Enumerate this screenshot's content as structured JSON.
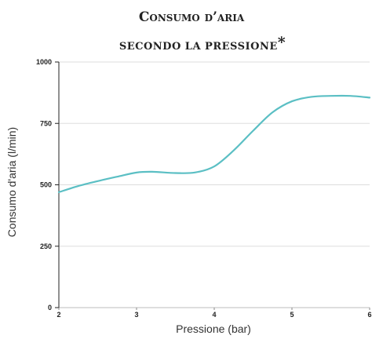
{
  "chart_data": {
    "type": "line",
    "title_line1": "Consumo d’aria",
    "title_line2": "secondo la pressione",
    "title_mark": "*",
    "xlabel": "Pressione (bar)",
    "ylabel": "Consumo d'aria (l/min)",
    "x_ticks": [
      2,
      3,
      4,
      5,
      6
    ],
    "y_ticks": [
      0,
      250,
      500,
      750,
      1000
    ],
    "xlim": [
      2,
      6
    ],
    "ylim": [
      0,
      1000
    ],
    "grid": "horizontal",
    "legend": "none",
    "series": [
      {
        "color": "#5bbfc4",
        "x": [
          2,
          2.25,
          2.5,
          2.75,
          3,
          3.2,
          3.5,
          3.75,
          4,
          4.25,
          4.5,
          4.75,
          5,
          5.25,
          5.5,
          5.75,
          6
        ],
        "y": [
          470,
          495,
          515,
          533,
          550,
          553,
          548,
          550,
          575,
          640,
          720,
          795,
          840,
          858,
          862,
          862,
          855
        ]
      }
    ]
  }
}
